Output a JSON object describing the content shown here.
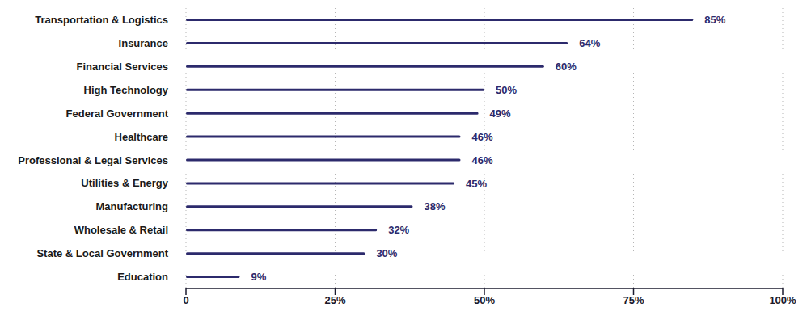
{
  "chart_data": {
    "type": "bar",
    "orientation": "horizontal",
    "categories": [
      "Transportation & Logistics",
      "Insurance",
      "Financial Services",
      "High Technology",
      "Federal Government",
      "Healthcare",
      "Professional & Legal Services",
      "Utilities & Energy",
      "Manufacturing",
      "Wholesale & Retail",
      "State & Local Government",
      "Education"
    ],
    "values": [
      85,
      64,
      60,
      50,
      49,
      46,
      46,
      45,
      38,
      32,
      30,
      9
    ],
    "value_labels": [
      "85%",
      "64%",
      "60%",
      "50%",
      "49%",
      "46%",
      "46%",
      "45%",
      "38%",
      "32%",
      "30%",
      "9%"
    ],
    "color": "#2c2a6c",
    "xlim": [
      0,
      100
    ],
    "xticks": [
      {
        "value": 0,
        "label": "0"
      },
      {
        "value": 25,
        "label": "25%"
      },
      {
        "value": 50,
        "label": "50%"
      },
      {
        "value": 75,
        "label": "75%"
      },
      {
        "value": 100,
        "label": "100%"
      }
    ],
    "grid": true,
    "data_labels": true
  }
}
